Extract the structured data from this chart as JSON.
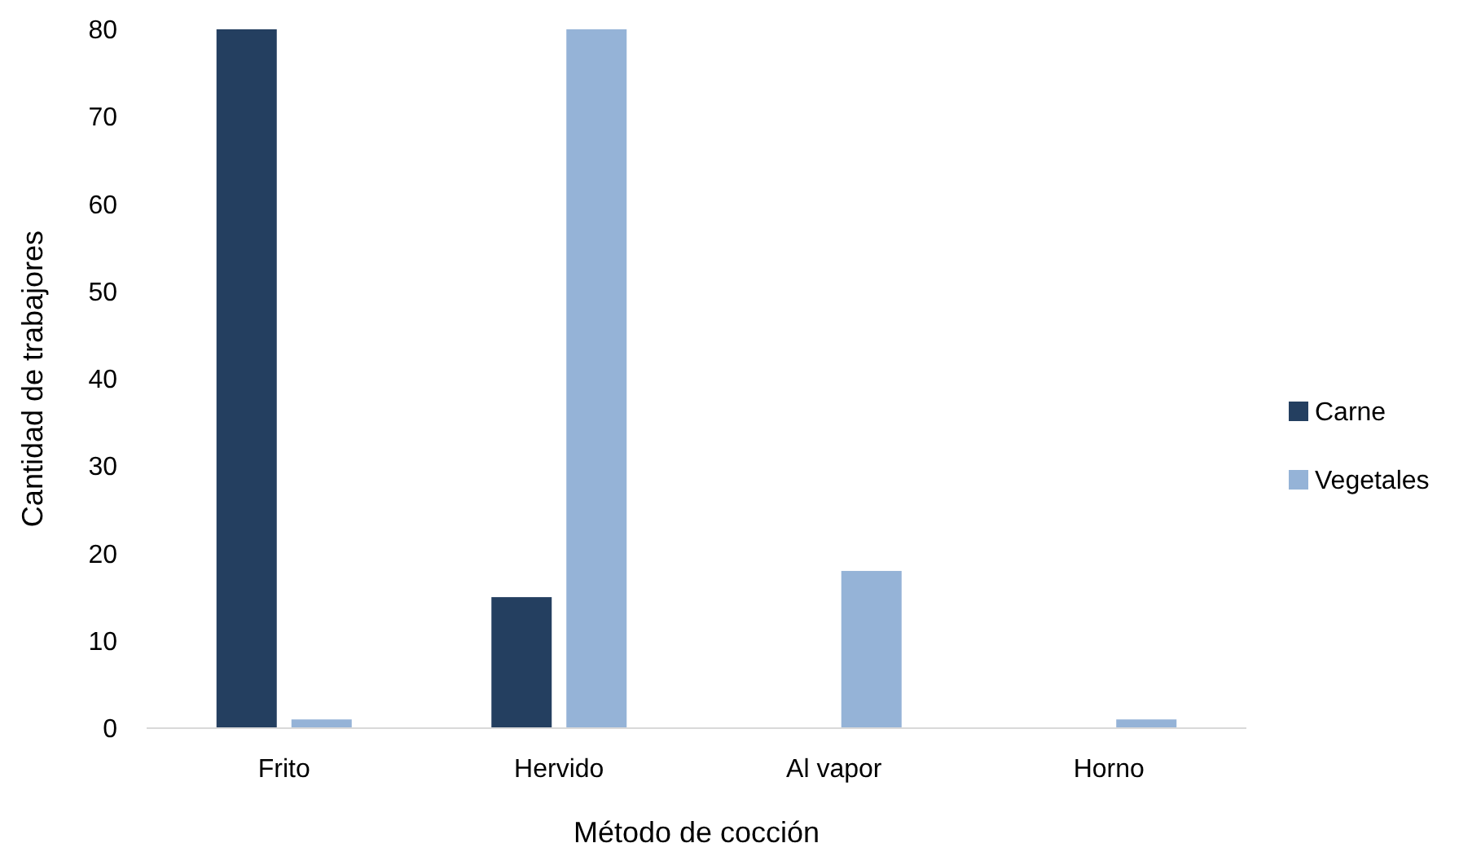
{
  "chart_data": {
    "type": "bar",
    "xlabel": "Método de cocción",
    "ylabel": "Cantidad de trabajores",
    "categories": [
      "Frito",
      "Hervido",
      "Al vapor",
      "Horno"
    ],
    "series": [
      {
        "name": "Carne",
        "color": "#243f60",
        "values": [
          80,
          15,
          0,
          0
        ]
      },
      {
        "name": "Vegetales",
        "color": "#95b3d7",
        "values": [
          1,
          80,
          18,
          1
        ]
      }
    ],
    "ylim": [
      0,
      80
    ],
    "yticks": [
      0,
      10,
      20,
      30,
      40,
      50,
      60,
      70,
      80
    ],
    "grid": false,
    "legend": "right"
  }
}
